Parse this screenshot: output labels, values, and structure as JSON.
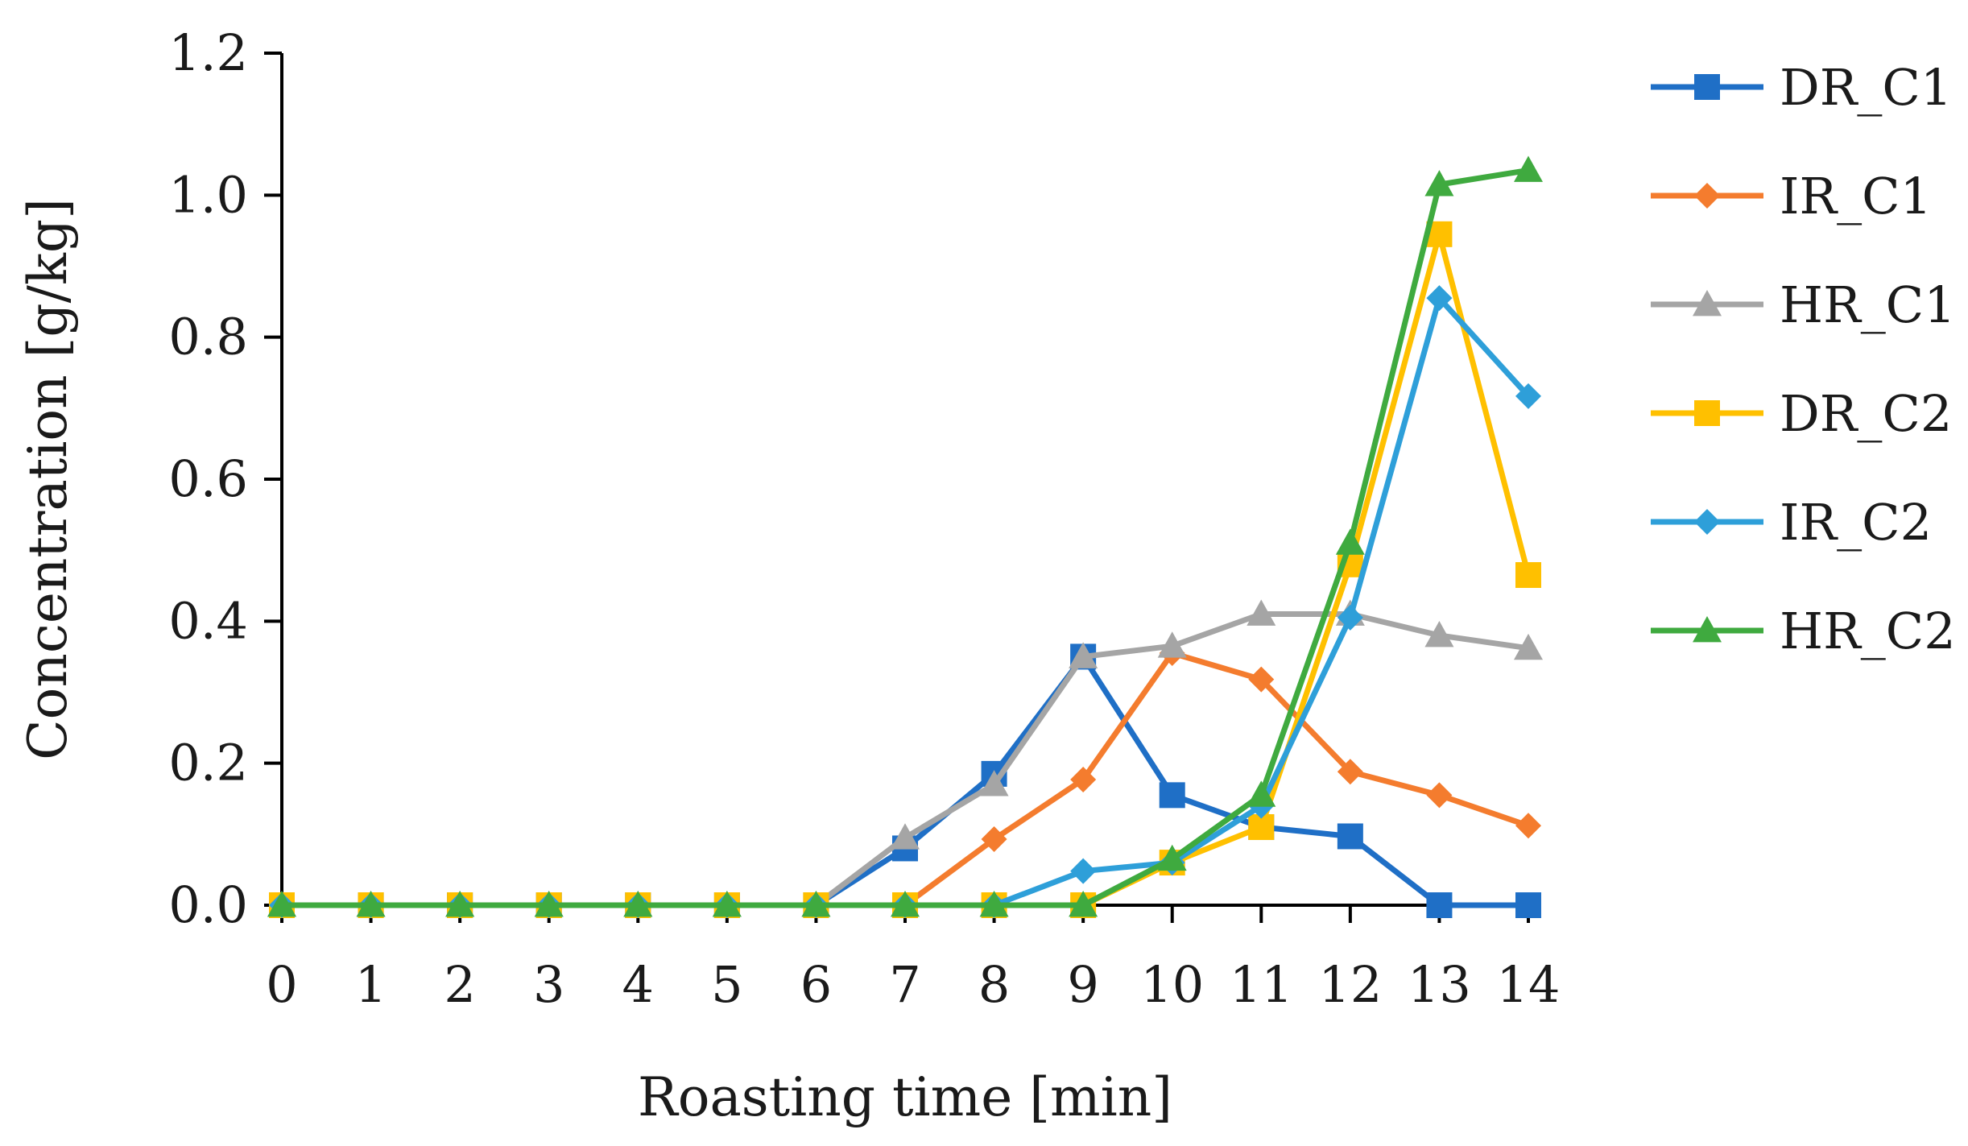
{
  "chart_data": {
    "type": "line",
    "title": "",
    "xlabel": "Roasting time [min]",
    "ylabel": "Concentration [g/kg]",
    "x": [
      0,
      1,
      2,
      3,
      4,
      5,
      6,
      7,
      8,
      9,
      10,
      11,
      12,
      13,
      14
    ],
    "x_tick_labels": [
      "0",
      "1",
      "2",
      "3",
      "4",
      "5",
      "6",
      "7",
      "8",
      "9",
      "10",
      "11",
      "12",
      "13",
      "14"
    ],
    "y_tick_labels": [
      "0.0",
      "0.2",
      "0.4",
      "0.6",
      "0.8",
      "1.0",
      "1.2"
    ],
    "y_ticks": [
      0,
      0.2,
      0.4,
      0.6,
      0.8,
      1.0,
      1.2
    ],
    "ylim": [
      0,
      1.2
    ],
    "xlim": [
      0,
      14
    ],
    "grid": false,
    "legend_position": "right",
    "series": [
      {
        "name": "DR_C1",
        "color": "#1f6fc6",
        "marker": "square",
        "values": [
          0,
          0,
          0,
          0,
          0,
          0,
          0,
          0.08,
          0.185,
          0.35,
          0.155,
          0.11,
          0.097,
          0,
          0
        ]
      },
      {
        "name": "IR_C1",
        "color": "#f47c2e",
        "marker": "diamond",
        "values": [
          0,
          0,
          0,
          0,
          0,
          0,
          0,
          0,
          0.093,
          0.177,
          0.355,
          0.318,
          0.188,
          0.155,
          0.112
        ]
      },
      {
        "name": "HR_C1",
        "color": "#a5a5a5",
        "marker": "triangle",
        "values": [
          0,
          0,
          0,
          0,
          0,
          0,
          0,
          0.095,
          0.17,
          0.35,
          0.365,
          0.41,
          0.41,
          0.38,
          0.362
        ]
      },
      {
        "name": "DR_C2",
        "color": "#ffc000",
        "marker": "square",
        "values": [
          0,
          0,
          0,
          0,
          0,
          0,
          0,
          0,
          0,
          0,
          0.06,
          0.11,
          0.48,
          0.945,
          0.465
        ]
      },
      {
        "name": "IR_C2",
        "color": "#2e9fd9",
        "marker": "diamond",
        "values": [
          0,
          0,
          0,
          0,
          0,
          0,
          0,
          0,
          0,
          0.048,
          0.06,
          0.14,
          0.405,
          0.855,
          0.717
        ]
      },
      {
        "name": "HR_C2",
        "color": "#3faa3f",
        "marker": "triangle",
        "values": [
          0,
          0,
          0,
          0,
          0,
          0,
          0,
          0,
          0,
          0,
          0.065,
          0.155,
          0.51,
          1.015,
          1.035
        ]
      }
    ]
  }
}
